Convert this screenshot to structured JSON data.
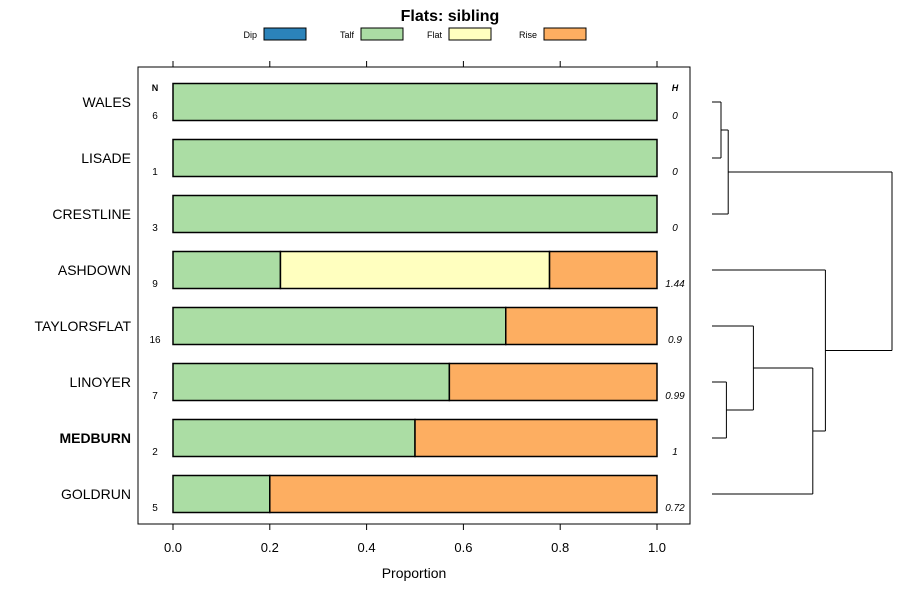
{
  "chart_data": {
    "type": "bar",
    "orientation": "horizontal",
    "stacked": true,
    "title": "Flats: sibling",
    "xlabel": "Proportion",
    "ylabel": "",
    "xlim": [
      0,
      1
    ],
    "xticks": [
      "0.0",
      "0.2",
      "0.4",
      "0.6",
      "0.8",
      "1.0"
    ],
    "legend_position": "top",
    "legend": [
      {
        "name": "Dip",
        "color": "#2b83ba"
      },
      {
        "name": "Talf",
        "color": "#abdda4"
      },
      {
        "name": "Flat",
        "color": "#ffffbf"
      },
      {
        "name": "Rise",
        "color": "#fdae61"
      }
    ],
    "n_header": "N",
    "h_header": "H",
    "categories": [
      "WALES",
      "LISADE",
      "CRESTLINE",
      "ASHDOWN",
      "TAYLORSFLAT",
      "LINOYER",
      "MEDBURN",
      "GOLDRUN"
    ],
    "highlighted": "MEDBURN",
    "n_values": [
      "6",
      "1",
      "3",
      "9",
      "16",
      "7",
      "2",
      "5"
    ],
    "h_values": [
      "0",
      "0",
      "0",
      "1.44",
      "0.9",
      "0.99",
      "1",
      "0.72"
    ],
    "series": [
      {
        "name": "Dip",
        "values": [
          0,
          0,
          0,
          0,
          0,
          0,
          0,
          0
        ]
      },
      {
        "name": "Talf",
        "values": [
          1.0,
          1.0,
          1.0,
          0.222,
          0.6875,
          0.571,
          0.5,
          0.2
        ]
      },
      {
        "name": "Flat",
        "values": [
          0,
          0,
          0,
          0.556,
          0,
          0,
          0,
          0
        ]
      },
      {
        "name": "Rise",
        "values": [
          0,
          0,
          0,
          0.222,
          0.3125,
          0.429,
          0.5,
          0.8
        ]
      }
    ],
    "dendrogram": {
      "leaves": [
        "WALES",
        "LISADE",
        "CRESTLINE",
        "ASHDOWN",
        "TAYLORSFLAT",
        "LINOYER",
        "MEDBURN",
        "GOLDRUN"
      ],
      "merges": [
        {
          "a": "WALES",
          "b": "LISADE",
          "height": 0.05
        },
        {
          "a": "WALES+LISADE",
          "b": "CRESTLINE",
          "height": 0.09
        },
        {
          "a": "LINOYER",
          "b": "MEDBURN",
          "height": 0.08
        },
        {
          "a": "TAYLORSFLAT",
          "b": "LINOYER+MEDBURN",
          "height": 0.23
        },
        {
          "a": "TAYLORSFLAT+LINOYER+MEDBURN",
          "b": "GOLDRUN",
          "height": 0.56
        },
        {
          "a": "ASHDOWN",
          "b": "TAYLORSFLAT+LINOYER+MEDBURN+GOLDRUN",
          "height": 0.63
        },
        {
          "a": "WALES+LISADE+CRESTLINE",
          "b": "ASHDOWN+TAYLORSFLAT+LINOYER+MEDBURN+GOLDRUN",
          "height": 1.0
        }
      ]
    }
  }
}
